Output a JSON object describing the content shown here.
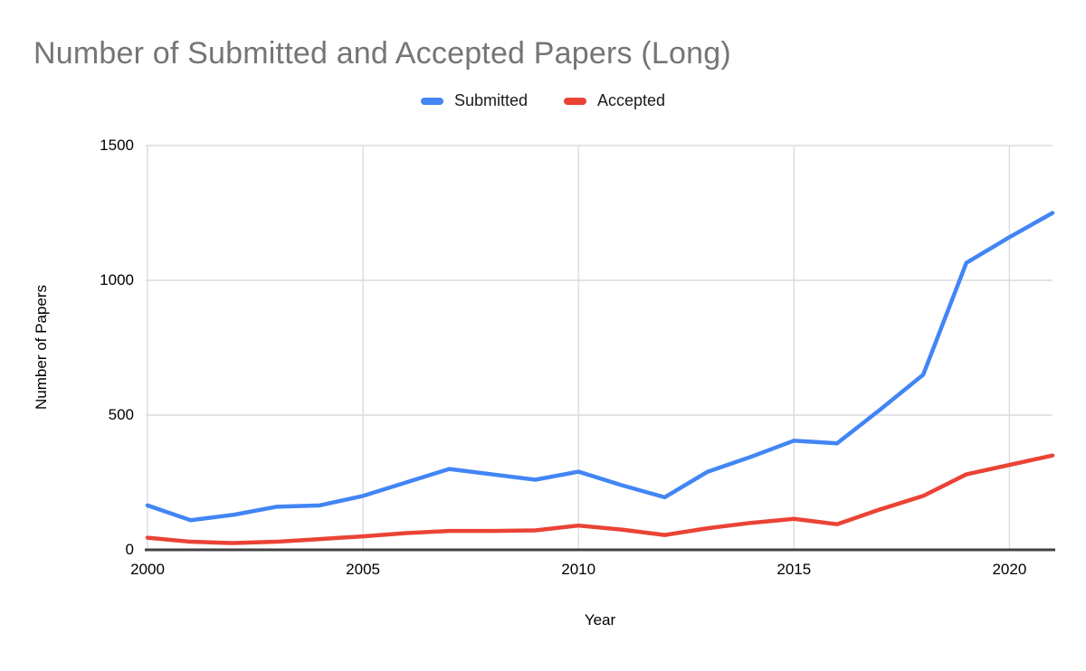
{
  "header": {
    "title": "Number of Submitted and Accepted Papers (Long)",
    "title_color": "#757575"
  },
  "legend": {
    "items": [
      {
        "label": "Submitted",
        "color": "#4285F4"
      },
      {
        "label": "Accepted",
        "color": "#EA4335"
      }
    ]
  },
  "colors": {
    "gridline": "#DADCE0",
    "baseline": "#424242",
    "background": "#ffffff"
  },
  "chart_data": {
    "type": "line",
    "title": "Number of Submitted and Accepted Papers (Long)",
    "xlabel": "Year",
    "ylabel": "Number of Papers",
    "x": [
      2000,
      2001,
      2002,
      2003,
      2004,
      2005,
      2006,
      2007,
      2008,
      2009,
      2010,
      2011,
      2012,
      2013,
      2014,
      2015,
      2016,
      2017,
      2018,
      2019,
      2020,
      2021
    ],
    "series": [
      {
        "name": "Submitted",
        "color": "#4285F4",
        "values": [
          165,
          110,
          130,
          160,
          165,
          200,
          250,
          300,
          280,
          260,
          290,
          240,
          195,
          290,
          345,
          405,
          395,
          520,
          650,
          1065,
          1160,
          1250
        ]
      },
      {
        "name": "Accepted",
        "color": "#EA4335",
        "values": [
          45,
          30,
          25,
          30,
          40,
          50,
          62,
          70,
          70,
          72,
          90,
          75,
          55,
          80,
          100,
          115,
          95,
          150,
          200,
          280,
          315,
          350
        ]
      }
    ],
    "xlim": [
      2000,
      2021
    ],
    "ylim": [
      0,
      1500
    ],
    "y_ticks": [
      0,
      500,
      1000,
      1500
    ],
    "x_ticks": [
      2000,
      2005,
      2010,
      2015,
      2020
    ],
    "grid": true,
    "legend_position": "top"
  }
}
